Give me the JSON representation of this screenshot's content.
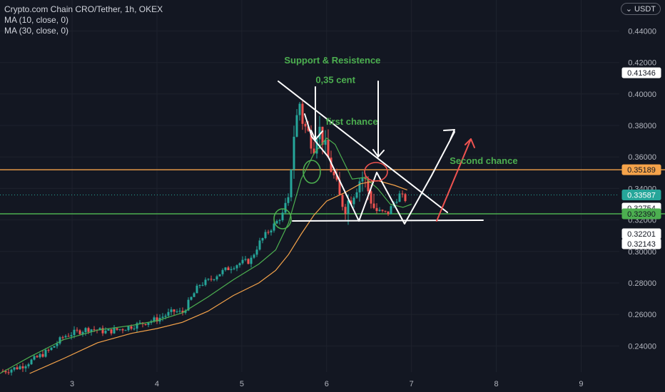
{
  "header": {
    "symbol_line": "Crypto.com Chain CRO/Tether, 1h, OKEX",
    "indicators": [
      "MA (10, close, 0)",
      "MA (30, close, 0)"
    ],
    "currency": "USDT"
  },
  "colors": {
    "background": "#131722",
    "up": "#26a69a",
    "down": "#ef5350",
    "ma10": "#4caf50",
    "ma30": "#f5a34a",
    "resistance": "#f5a34a",
    "support": "#4caf50",
    "annotation_text": "#4caf50",
    "drawing": "#ffffff",
    "arrow_red": "#ef5350"
  },
  "chart_data": {
    "type": "candlestick",
    "title": "Crypto.com Chain CRO/Tether, 1h, OKEX",
    "x_ticks": [
      "3",
      "4",
      "5",
      "6",
      "7",
      "8",
      "9"
    ],
    "x_tick_values": [
      3,
      4,
      5,
      6,
      7,
      8,
      9
    ],
    "xlim": [
      2.15,
      9.45
    ],
    "y_ticks": [
      "0.24000",
      "0.26000",
      "0.28000",
      "0.30000",
      "0.32000",
      "0.34000",
      "0.36000",
      "0.38000",
      "0.40000",
      "0.42000",
      "0.44000"
    ],
    "ylim": [
      0.2234,
      0.4597
    ],
    "grid": true,
    "series": [
      {
        "name": "MA (10, close, 0)",
        "points": [
          [
            2.15,
            0.2225
          ],
          [
            2.5,
            0.233
          ],
          [
            2.9,
            0.244
          ],
          [
            3.3,
            0.25
          ],
          [
            3.7,
            0.253
          ],
          [
            4.0,
            0.256
          ],
          [
            4.3,
            0.261
          ],
          [
            4.6,
            0.271
          ],
          [
            4.9,
            0.282
          ],
          [
            5.2,
            0.292
          ],
          [
            5.4,
            0.301
          ],
          [
            5.55,
            0.318
          ],
          [
            5.7,
            0.346
          ],
          [
            5.85,
            0.362
          ],
          [
            6.0,
            0.372
          ],
          [
            6.1,
            0.368
          ],
          [
            6.2,
            0.357
          ],
          [
            6.3,
            0.346
          ],
          [
            6.45,
            0.347
          ],
          [
            6.6,
            0.34
          ],
          [
            6.75,
            0.33
          ],
          [
            6.9,
            0.328
          ],
          [
            7.0,
            0.33
          ]
        ]
      },
      {
        "name": "MA (30, close, 0)",
        "points": [
          [
            2.5,
            0.2225
          ],
          [
            2.9,
            0.232
          ],
          [
            3.3,
            0.242
          ],
          [
            3.7,
            0.248
          ],
          [
            4.0,
            0.251
          ],
          [
            4.3,
            0.255
          ],
          [
            4.6,
            0.262
          ],
          [
            4.9,
            0.272
          ],
          [
            5.2,
            0.28
          ],
          [
            5.4,
            0.288
          ],
          [
            5.55,
            0.298
          ],
          [
            5.7,
            0.311
          ],
          [
            5.85,
            0.323
          ],
          [
            6.0,
            0.332
          ],
          [
            6.2,
            0.337
          ],
          [
            6.4,
            0.343
          ],
          [
            6.6,
            0.345
          ],
          [
            6.8,
            0.342
          ],
          [
            6.95,
            0.339
          ]
        ]
      }
    ],
    "price_labels": [
      {
        "text": "0.41346",
        "value": 0.41346,
        "style": "white"
      },
      {
        "text": "0.35189",
        "value": 0.35189,
        "style": "orange"
      },
      {
        "text": "0.33587",
        "value": 0.33587,
        "style": "teal"
      },
      {
        "text": "0.32754",
        "value": 0.32754,
        "style": "white"
      },
      {
        "text": "0.32390",
        "value": 0.3239,
        "style": "green"
      },
      {
        "text": "0.32201",
        "value": 0.32201,
        "style": "white"
      },
      {
        "text": "0.32143",
        "value": 0.32143,
        "style": "white"
      }
    ],
    "horizontal_lines": [
      {
        "value": 0.35189,
        "color": "orange"
      },
      {
        "value": 0.3239,
        "color": "green"
      }
    ],
    "annotations": [
      {
        "text": "Support   &    Resistence",
        "x": 5.5,
        "y": 0.4195
      },
      {
        "text": "0,35 cent",
        "x": 5.87,
        "y": 0.407
      },
      {
        "text": "first chance",
        "x": 5.99,
        "y": 0.3805
      },
      {
        "text": "Second chance",
        "x": 7.45,
        "y": 0.3555
      }
    ],
    "candle_anchors": [
      [
        2.2,
        0.224
      ],
      [
        2.4,
        0.227
      ],
      [
        2.6,
        0.233
      ],
      [
        2.75,
        0.238
      ],
      [
        2.9,
        0.246
      ],
      [
        3.0,
        0.248
      ],
      [
        3.2,
        0.251
      ],
      [
        3.4,
        0.249
      ],
      [
        3.6,
        0.251
      ],
      [
        3.8,
        0.254
      ],
      [
        4.0,
        0.257
      ],
      [
        4.2,
        0.262
      ],
      [
        4.3,
        0.261
      ],
      [
        4.4,
        0.27
      ],
      [
        4.5,
        0.279
      ],
      [
        4.6,
        0.281
      ],
      [
        4.7,
        0.285
      ],
      [
        4.8,
        0.288
      ],
      [
        4.9,
        0.291
      ],
      [
        5.0,
        0.293
      ],
      [
        5.1,
        0.294
      ],
      [
        5.2,
        0.305
      ],
      [
        5.3,
        0.312
      ],
      [
        5.4,
        0.318
      ],
      [
        5.5,
        0.325
      ],
      [
        5.55,
        0.33
      ],
      [
        5.6,
        0.37
      ],
      [
        5.68,
        0.395
      ],
      [
        5.72,
        0.382
      ],
      [
        5.78,
        0.375
      ],
      [
        5.85,
        0.368
      ],
      [
        5.9,
        0.38
      ],
      [
        5.95,
        0.372
      ],
      [
        6.0,
        0.362
      ],
      [
        6.08,
        0.348
      ],
      [
        6.15,
        0.334
      ],
      [
        6.22,
        0.329
      ],
      [
        6.3,
        0.336
      ],
      [
        6.38,
        0.345
      ],
      [
        6.43,
        0.348
      ],
      [
        6.5,
        0.337
      ],
      [
        6.57,
        0.326
      ],
      [
        6.65,
        0.325
      ],
      [
        6.72,
        0.324
      ],
      [
        6.78,
        0.33
      ],
      [
        6.86,
        0.336
      ],
      [
        6.93,
        0.333
      ]
    ]
  }
}
